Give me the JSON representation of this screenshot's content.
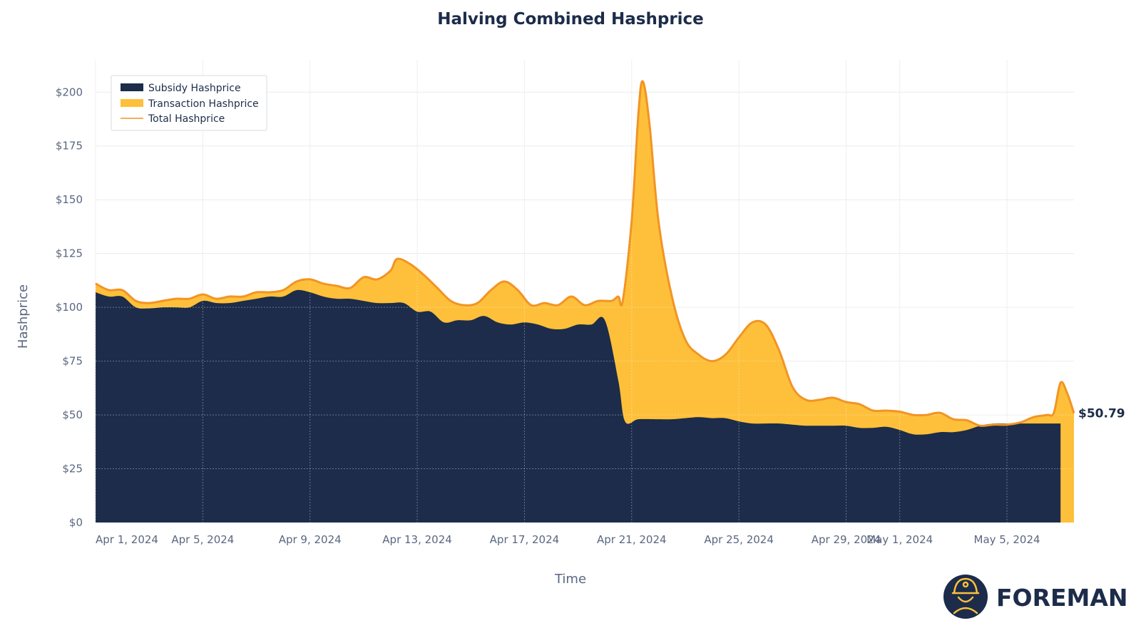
{
  "chart_data": {
    "type": "area",
    "title": "Halving Combined Hashprice",
    "xlabel": "Time",
    "ylabel": "Hashprice",
    "ylim": [
      0,
      215
    ],
    "yticks": [
      0,
      25,
      50,
      75,
      100,
      125,
      150,
      175,
      200
    ],
    "ytick_labels": [
      "$0",
      "$25",
      "$50",
      "$75",
      "$100",
      "$125",
      "$150",
      "$175",
      "$200"
    ],
    "xlim": [
      "2024-03-31",
      "2024-05-06"
    ],
    "xticks": [
      {
        "date": "2024-03-31",
        "label": "Apr 1, 2024"
      },
      {
        "date": "2024-04-04",
        "label": "Apr 5, 2024"
      },
      {
        "date": "2024-04-08",
        "label": "Apr 9, 2024"
      },
      {
        "date": "2024-04-12",
        "label": "Apr 13, 2024"
      },
      {
        "date": "2024-04-16",
        "label": "Apr 17, 2024"
      },
      {
        "date": "2024-04-20",
        "label": "Apr 21, 2024"
      },
      {
        "date": "2024-04-24",
        "label": "Apr 25, 2024"
      },
      {
        "date": "2024-04-28",
        "label": "Apr 29, 2024"
      },
      {
        "date": "2024-04-30",
        "label": "May 1, 2024"
      },
      {
        "date": "2024-05-04",
        "label": "May 5, 2024"
      }
    ],
    "grid": true,
    "legend_position": "top-left",
    "series": [
      {
        "name": "Subsidy Hashprice",
        "kind": "area",
        "color": "#1c2c4a",
        "points": [
          [
            "2024-03-31T00:00",
            107
          ],
          [
            "2024-03-31T12:00",
            105
          ],
          [
            "2024-04-01T00:00",
            105
          ],
          [
            "2024-04-01T12:00",
            100
          ],
          [
            "2024-04-02T00:00",
            99.5
          ],
          [
            "2024-04-02T12:00",
            100
          ],
          [
            "2024-04-03T00:00",
            100
          ],
          [
            "2024-04-03T12:00",
            100
          ],
          [
            "2024-04-04T00:00",
            103
          ],
          [
            "2024-04-04T12:00",
            102
          ],
          [
            "2024-04-05T00:00",
            102
          ],
          [
            "2024-04-05T12:00",
            103
          ],
          [
            "2024-04-06T00:00",
            104
          ],
          [
            "2024-04-06T12:00",
            105
          ],
          [
            "2024-04-07T00:00",
            105
          ],
          [
            "2024-04-07T12:00",
            108
          ],
          [
            "2024-04-08T00:00",
            107
          ],
          [
            "2024-04-08T12:00",
            105
          ],
          [
            "2024-04-09T00:00",
            104
          ],
          [
            "2024-04-09T12:00",
            104
          ],
          [
            "2024-04-10T00:00",
            103
          ],
          [
            "2024-04-10T12:00",
            102
          ],
          [
            "2024-04-11T00:00",
            102
          ],
          [
            "2024-04-11T12:00",
            102
          ],
          [
            "2024-04-12T00:00",
            98
          ],
          [
            "2024-04-12T12:00",
            98
          ],
          [
            "2024-04-13T00:00",
            93
          ],
          [
            "2024-04-13T12:00",
            94
          ],
          [
            "2024-04-14T00:00",
            94
          ],
          [
            "2024-04-14T12:00",
            96
          ],
          [
            "2024-04-15T00:00",
            93
          ],
          [
            "2024-04-15T12:00",
            92
          ],
          [
            "2024-04-16T00:00",
            93
          ],
          [
            "2024-04-16T12:00",
            92
          ],
          [
            "2024-04-17T00:00",
            90
          ],
          [
            "2024-04-17T12:00",
            90
          ],
          [
            "2024-04-18T00:00",
            92
          ],
          [
            "2024-04-18T12:00",
            92
          ],
          [
            "2024-04-19T00:00",
            94
          ],
          [
            "2024-04-19T12:00",
            66
          ],
          [
            "2024-04-19T18:00",
            47
          ],
          [
            "2024-04-20T06:00",
            48
          ],
          [
            "2024-04-21T00:00",
            48
          ],
          [
            "2024-04-21T12:00",
            48
          ],
          [
            "2024-04-22T00:00",
            48.5
          ],
          [
            "2024-04-22T12:00",
            49
          ],
          [
            "2024-04-23T00:00",
            48.5
          ],
          [
            "2024-04-23T12:00",
            48.5
          ],
          [
            "2024-04-24T00:00",
            47
          ],
          [
            "2024-04-24T12:00",
            46
          ],
          [
            "2024-04-25T00:00",
            46
          ],
          [
            "2024-04-25T12:00",
            46
          ],
          [
            "2024-04-26T00:00",
            45.5
          ],
          [
            "2024-04-26T12:00",
            45
          ],
          [
            "2024-04-27T00:00",
            45
          ],
          [
            "2024-04-27T12:00",
            45
          ],
          [
            "2024-04-28T00:00",
            45
          ],
          [
            "2024-04-28T12:00",
            44
          ],
          [
            "2024-04-29T00:00",
            44
          ],
          [
            "2024-04-29T12:00",
            44.5
          ],
          [
            "2024-04-30T00:00",
            43
          ],
          [
            "2024-04-30T12:00",
            41
          ],
          [
            "2024-05-01T00:00",
            41
          ],
          [
            "2024-05-01T12:00",
            42
          ],
          [
            "2024-05-02T00:00",
            42
          ],
          [
            "2024-05-02T12:00",
            43
          ],
          [
            "2024-05-03T00:00",
            45
          ],
          [
            "2024-05-03T12:00",
            46
          ],
          [
            "2024-05-04T00:00",
            46
          ],
          [
            "2024-05-04T12:00",
            46
          ],
          [
            "2024-05-05T00:00",
            46
          ],
          [
            "2024-05-05T12:00",
            46
          ],
          [
            "2024-05-06T00:00",
            46
          ]
        ]
      },
      {
        "name": "Transaction Hashprice",
        "kind": "area",
        "color": "#fec03a",
        "note_visible": ""
      },
      {
        "name": "Total Hashprice",
        "kind": "line",
        "color": "#f29424",
        "points": [
          [
            "2024-03-31T00:00",
            111
          ],
          [
            "2024-03-31T12:00",
            108
          ],
          [
            "2024-04-01T00:00",
            108
          ],
          [
            "2024-04-01T12:00",
            103
          ],
          [
            "2024-04-02T00:00",
            102
          ],
          [
            "2024-04-02T12:00",
            103
          ],
          [
            "2024-04-03T00:00",
            104
          ],
          [
            "2024-04-03T12:00",
            104
          ],
          [
            "2024-04-04T00:00",
            106
          ],
          [
            "2024-04-04T12:00",
            104
          ],
          [
            "2024-04-05T00:00",
            105
          ],
          [
            "2024-04-05T12:00",
            105
          ],
          [
            "2024-04-06T00:00",
            107
          ],
          [
            "2024-04-06T12:00",
            107
          ],
          [
            "2024-04-07T00:00",
            108
          ],
          [
            "2024-04-07T12:00",
            112
          ],
          [
            "2024-04-08T00:00",
            113
          ],
          [
            "2024-04-08T12:00",
            111
          ],
          [
            "2024-04-09T00:00",
            110
          ],
          [
            "2024-04-09T12:00",
            109
          ],
          [
            "2024-04-10T00:00",
            114
          ],
          [
            "2024-04-10T12:00",
            113
          ],
          [
            "2024-04-11T00:00",
            117
          ],
          [
            "2024-04-11T06:00",
            122.5
          ],
          [
            "2024-04-11T18:00",
            120
          ],
          [
            "2024-04-12T06:00",
            115
          ],
          [
            "2024-04-12T18:00",
            109
          ],
          [
            "2024-04-13T06:00",
            103
          ],
          [
            "2024-04-13T18:00",
            101
          ],
          [
            "2024-04-14T06:00",
            102
          ],
          [
            "2024-04-14T18:00",
            108
          ],
          [
            "2024-04-15T06:00",
            112
          ],
          [
            "2024-04-15T18:00",
            108
          ],
          [
            "2024-04-16T06:00",
            101
          ],
          [
            "2024-04-16T18:00",
            102
          ],
          [
            "2024-04-17T06:00",
            101
          ],
          [
            "2024-04-17T18:00",
            105
          ],
          [
            "2024-04-18T06:00",
            101
          ],
          [
            "2024-04-18T18:00",
            103
          ],
          [
            "2024-04-19T06:00",
            103
          ],
          [
            "2024-04-19T12:00",
            105
          ],
          [
            "2024-04-19T16:00",
            103
          ],
          [
            "2024-04-20T00:00",
            140
          ],
          [
            "2024-04-20T06:00",
            190
          ],
          [
            "2024-04-20T10:00",
            205
          ],
          [
            "2024-04-20T16:00",
            185
          ],
          [
            "2024-04-21T00:00",
            140
          ],
          [
            "2024-04-21T12:00",
            105
          ],
          [
            "2024-04-22T00:00",
            85
          ],
          [
            "2024-04-22T12:00",
            78
          ],
          [
            "2024-04-23T00:00",
            75
          ],
          [
            "2024-04-23T12:00",
            78
          ],
          [
            "2024-04-24T00:00",
            86
          ],
          [
            "2024-04-24T12:00",
            93
          ],
          [
            "2024-04-25T00:00",
            92
          ],
          [
            "2024-04-25T12:00",
            80
          ],
          [
            "2024-04-26T00:00",
            63
          ],
          [
            "2024-04-26T12:00",
            57
          ],
          [
            "2024-04-27T00:00",
            57
          ],
          [
            "2024-04-27T12:00",
            58
          ],
          [
            "2024-04-28T00:00",
            56
          ],
          [
            "2024-04-28T12:00",
            55
          ],
          [
            "2024-04-29T00:00",
            52
          ],
          [
            "2024-04-29T12:00",
            52
          ],
          [
            "2024-04-30T00:00",
            51.5
          ],
          [
            "2024-04-30T12:00",
            50
          ],
          [
            "2024-05-01T00:00",
            50
          ],
          [
            "2024-05-01T12:00",
            51
          ],
          [
            "2024-05-02T00:00",
            48
          ],
          [
            "2024-05-02T12:00",
            47.5
          ],
          [
            "2024-05-03T00:00",
            45
          ],
          [
            "2024-05-03T12:00",
            45.5
          ],
          [
            "2024-05-04T00:00",
            45.5
          ],
          [
            "2024-05-04T12:00",
            46.5
          ],
          [
            "2024-05-05T00:00",
            49
          ],
          [
            "2024-05-05T12:00",
            50
          ],
          [
            "2024-05-05T18:00",
            51
          ],
          [
            "2024-05-06T00:00",
            65
          ],
          [
            "2024-05-06T06:00",
            60
          ],
          [
            "2024-05-06T12:00",
            50.79
          ]
        ]
      }
    ],
    "last_value_label": "$50.79",
    "watermark": "FOREMAN"
  }
}
